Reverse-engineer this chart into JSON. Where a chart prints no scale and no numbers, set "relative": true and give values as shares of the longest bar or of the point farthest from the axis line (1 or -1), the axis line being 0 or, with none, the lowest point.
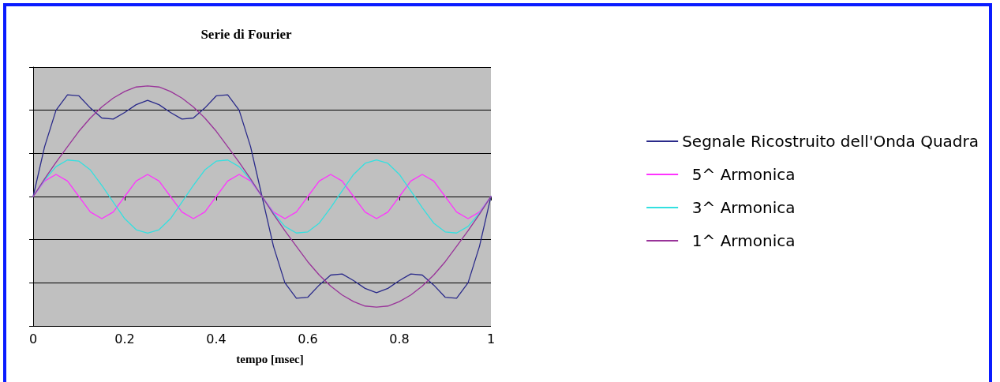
{
  "chart_data": {
    "type": "line",
    "title": "Serie di Fourier",
    "annotations": [
      "tempo [msec]"
    ],
    "relative": true,
    "x": [
      0,
      0.025,
      0.05,
      0.075,
      0.1,
      0.125,
      0.15,
      0.175,
      0.2,
      0.225,
      0.25,
      0.275,
      0.3,
      0.325,
      0.35,
      0.375,
      0.4,
      0.425,
      0.45,
      0.475,
      0.5,
      0.525,
      0.55,
      0.575,
      0.6,
      0.625,
      0.65,
      0.675,
      0.7,
      0.725,
      0.75,
      0.775,
      0.8,
      0.825,
      0.85,
      0.875,
      0.9,
      0.925,
      0.95,
      0.975,
      1
    ],
    "xlim": [
      0,
      1
    ],
    "xticks": [
      0,
      0.2,
      0.4,
      0.6,
      0.8,
      1
    ],
    "series": [
      {
        "name": "Segnale Ricostruito dell'Onda Quadra",
        "color": "#2a2a8a",
        "values": [
          0,
          0.45,
          0.78,
          0.92,
          0.91,
          0.8,
          0.71,
          0.7,
          0.76,
          0.83,
          0.87,
          0.83,
          0.76,
          0.7,
          0.71,
          0.8,
          0.91,
          0.92,
          0.78,
          0.45,
          0,
          -0.45,
          -0.78,
          -0.92,
          -0.91,
          -0.8,
          -0.71,
          -0.7,
          -0.76,
          -0.83,
          -0.87,
          -0.83,
          -0.76,
          -0.7,
          -0.71,
          -0.8,
          -0.91,
          -0.92,
          -0.78,
          -0.45,
          0
        ]
      },
      {
        "name": "  5^ Armonica",
        "color": "#ff33ff",
        "values": [
          0,
          0.14,
          0.2,
          0.14,
          0,
          -0.14,
          -0.2,
          -0.14,
          0,
          0.14,
          0.2,
          0.14,
          0,
          -0.14,
          -0.2,
          -0.14,
          0,
          0.14,
          0.2,
          0.14,
          0,
          -0.14,
          -0.2,
          -0.14,
          0,
          0.14,
          0.2,
          0.14,
          0,
          -0.14,
          -0.2,
          -0.14,
          0,
          0.14,
          0.2,
          0.14,
          0,
          -0.14,
          -0.2,
          -0.14,
          0
        ]
      },
      {
        "name": "  3^ Armonica",
        "color": "#33e0e0",
        "values": [
          0,
          0.15,
          0.27,
          0.33,
          0.32,
          0.24,
          0.1,
          -0.05,
          -0.2,
          -0.3,
          -0.33,
          -0.3,
          -0.2,
          -0.05,
          0.1,
          0.24,
          0.32,
          0.33,
          0.27,
          0.15,
          0,
          -0.15,
          -0.27,
          -0.33,
          -0.32,
          -0.24,
          -0.1,
          0.05,
          0.2,
          0.3,
          0.33,
          0.3,
          0.2,
          0.05,
          -0.1,
          -0.24,
          -0.32,
          -0.33,
          -0.27,
          -0.15,
          0
        ]
      },
      {
        "name": "  1^ Armonica",
        "color": "#993399",
        "values": [
          0,
          0.16,
          0.31,
          0.45,
          0.59,
          0.71,
          0.81,
          0.89,
          0.95,
          0.99,
          1,
          0.99,
          0.95,
          0.89,
          0.81,
          0.71,
          0.59,
          0.45,
          0.31,
          0.16,
          0,
          -0.16,
          -0.31,
          -0.45,
          -0.59,
          -0.71,
          -0.81,
          -0.89,
          -0.95,
          -0.99,
          -1,
          -0.99,
          -0.95,
          -0.89,
          -0.81,
          -0.71,
          -0.59,
          -0.45,
          -0.31,
          -0.16,
          0
        ]
      }
    ],
    "grid": "y",
    "legend": "right",
    "marker": "none",
    "line_style": "solid"
  }
}
